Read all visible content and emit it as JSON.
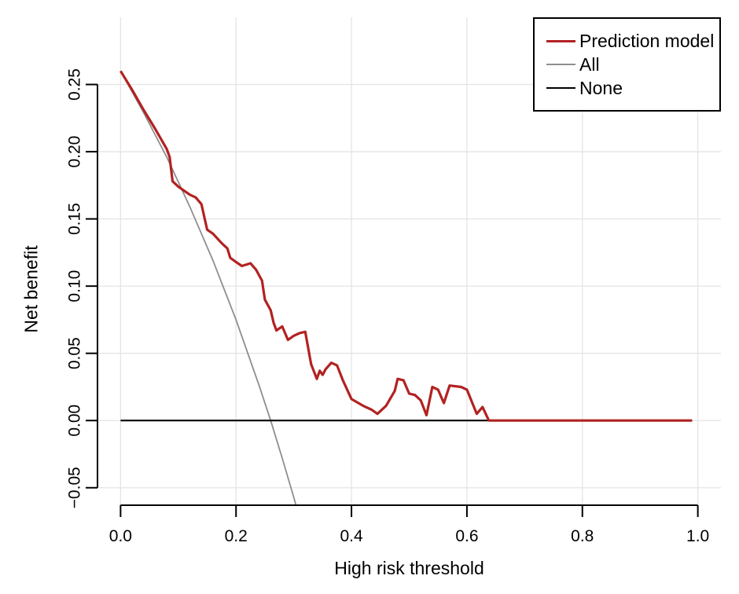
{
  "figure": {
    "background": "#ffffff",
    "grid_color": "#e4e4e4",
    "axis_color": "#000000"
  },
  "chart_data": {
    "type": "line",
    "title": "",
    "xlabel": "High risk threshold",
    "ylabel": "Net benefit",
    "xlim": [
      -0.04,
      1.04
    ],
    "ylim": [
      -0.063,
      0.3
    ],
    "grid": true,
    "legend_position": "top-right",
    "x_ticks": [
      0.0,
      0.2,
      0.4,
      0.6,
      0.8,
      1.0
    ],
    "x_tick_labels": [
      "0.0",
      "0.2",
      "0.4",
      "0.6",
      "0.8",
      "1.0"
    ],
    "y_ticks": [
      -0.05,
      0.0,
      0.05,
      0.1,
      0.15,
      0.2,
      0.25
    ],
    "y_tick_labels": [
      "−0.05",
      "0.00",
      "0.05",
      "0.10",
      "0.15",
      "0.20",
      "0.25"
    ],
    "series": [
      {
        "name": "All",
        "color": "#8e8e8e",
        "line_width": 1.8,
        "points": [
          [
            0.0,
            0.26
          ],
          [
            0.04,
            0.229
          ],
          [
            0.08,
            0.196
          ],
          [
            0.12,
            0.159
          ],
          [
            0.16,
            0.119
          ],
          [
            0.2,
            0.075
          ],
          [
            0.24,
            0.026
          ],
          [
            0.26,
            0.0
          ],
          [
            0.28,
            -0.028
          ],
          [
            0.3,
            -0.057
          ],
          [
            0.307,
            -0.068
          ]
        ]
      },
      {
        "name": "None",
        "color": "#000000",
        "line_width": 2.2,
        "points": [
          [
            0.0,
            0.0
          ],
          [
            0.99,
            0.0
          ]
        ]
      },
      {
        "name": "Prediction model",
        "color": "#b22222",
        "line_width": 3.2,
        "points": [
          [
            0.0,
            0.26
          ],
          [
            0.02,
            0.246
          ],
          [
            0.04,
            0.231
          ],
          [
            0.06,
            0.217
          ],
          [
            0.08,
            0.202
          ],
          [
            0.085,
            0.196
          ],
          [
            0.09,
            0.178
          ],
          [
            0.1,
            0.174
          ],
          [
            0.11,
            0.171
          ],
          [
            0.12,
            0.168
          ],
          [
            0.13,
            0.166
          ],
          [
            0.14,
            0.161
          ],
          [
            0.15,
            0.142
          ],
          [
            0.16,
            0.139
          ],
          [
            0.175,
            0.132
          ],
          [
            0.185,
            0.128
          ],
          [
            0.19,
            0.121
          ],
          [
            0.2,
            0.118
          ],
          [
            0.21,
            0.115
          ],
          [
            0.225,
            0.117
          ],
          [
            0.235,
            0.112
          ],
          [
            0.245,
            0.104
          ],
          [
            0.25,
            0.09
          ],
          [
            0.26,
            0.082
          ],
          [
            0.265,
            0.073
          ],
          [
            0.27,
            0.067
          ],
          [
            0.28,
            0.07
          ],
          [
            0.29,
            0.06
          ],
          [
            0.3,
            0.063
          ],
          [
            0.31,
            0.065
          ],
          [
            0.32,
            0.066
          ],
          [
            0.33,
            0.042
          ],
          [
            0.34,
            0.031
          ],
          [
            0.345,
            0.037
          ],
          [
            0.35,
            0.034
          ],
          [
            0.355,
            0.038
          ],
          [
            0.365,
            0.043
          ],
          [
            0.375,
            0.041
          ],
          [
            0.385,
            0.03
          ],
          [
            0.4,
            0.016
          ],
          [
            0.42,
            0.011
          ],
          [
            0.435,
            0.008
          ],
          [
            0.445,
            0.005
          ],
          [
            0.46,
            0.011
          ],
          [
            0.475,
            0.022
          ],
          [
            0.48,
            0.031
          ],
          [
            0.49,
            0.03
          ],
          [
            0.5,
            0.02
          ],
          [
            0.51,
            0.019
          ],
          [
            0.52,
            0.015
          ],
          [
            0.53,
            0.004
          ],
          [
            0.54,
            0.025
          ],
          [
            0.55,
            0.023
          ],
          [
            0.56,
            0.013
          ],
          [
            0.57,
            0.026
          ],
          [
            0.59,
            0.025
          ],
          [
            0.6,
            0.023
          ],
          [
            0.617,
            0.005
          ],
          [
            0.627,
            0.01
          ],
          [
            0.638,
            0.0
          ],
          [
            0.99,
            0.0
          ]
        ]
      }
    ]
  },
  "legend": {
    "order": [
      2,
      0,
      1
    ]
  }
}
